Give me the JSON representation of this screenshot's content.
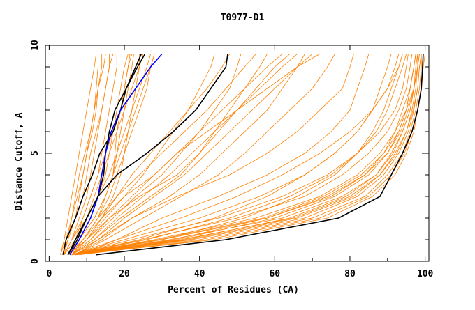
{
  "chart_data": {
    "type": "line",
    "title": "T0977-D1",
    "xlabel": "Percent of Residues (CA)",
    "ylabel": "Distance Cutoff, A",
    "xlim": [
      -1,
      101
    ],
    "ylim": [
      0,
      10
    ],
    "x_ticks": [
      0,
      20,
      40,
      60,
      80,
      100
    ],
    "y_ticks": [
      0,
      5,
      10
    ],
    "grid": false,
    "colors": {
      "models": "#ff8000",
      "highlight": "#000000",
      "blue": "#0000ff"
    },
    "y_levels": [
      0.3,
      1,
      2,
      3,
      4,
      5,
      6,
      7,
      8,
      9,
      9.6
    ],
    "series_note": "each series lists x (percent of residues) at each y_levels cutoff",
    "orange_series": [
      [
        3,
        4,
        5,
        6,
        7,
        8,
        9,
        10,
        11,
        12,
        12.5
      ],
      [
        3.5,
        5,
        7,
        8,
        9,
        10,
        11,
        12,
        12.5,
        13,
        13
      ],
      [
        4,
        6,
        8,
        10,
        11,
        12,
        13,
        14,
        15,
        16,
        16
      ],
      [
        3,
        4.5,
        6,
        7.5,
        9,
        10,
        11.5,
        12.5,
        13,
        14,
        14
      ],
      [
        4,
        5,
        6,
        7,
        8,
        9.5,
        11,
        12,
        13,
        14.5,
        15
      ],
      [
        5,
        7,
        9,
        11,
        13,
        14,
        15,
        16,
        17,
        18,
        18
      ],
      [
        4,
        6,
        9,
        11,
        13,
        15,
        17,
        18,
        19,
        20,
        21
      ],
      [
        5,
        8,
        11,
        13,
        15,
        16,
        17,
        19,
        20,
        21,
        22
      ],
      [
        4,
        7,
        10,
        12,
        14,
        16,
        18,
        20,
        22,
        24,
        25
      ],
      [
        5,
        8,
        12,
        15,
        17,
        19,
        21,
        23,
        25,
        27,
        28
      ],
      [
        6,
        9,
        13,
        15,
        17,
        18,
        19,
        20,
        21,
        22,
        22.5
      ],
      [
        4,
        6,
        10,
        13,
        16,
        18,
        20,
        22,
        24,
        26,
        27
      ],
      [
        3.5,
        5,
        7,
        9,
        10,
        11,
        12.5,
        14,
        15,
        16,
        17
      ],
      [
        5,
        9,
        13,
        16,
        18,
        20,
        22,
        24,
        26,
        27,
        28
      ],
      [
        6,
        10,
        14,
        17,
        19,
        20,
        21,
        22,
        23,
        24,
        24
      ],
      [
        5,
        8,
        12,
        15,
        17,
        17.5,
        18,
        19,
        20,
        21,
        21.5
      ],
      [
        5,
        10,
        14,
        18,
        22,
        27,
        32,
        37,
        42,
        46,
        48
      ],
      [
        6,
        11,
        16,
        22,
        28,
        34,
        40,
        46,
        52,
        58,
        62
      ],
      [
        5,
        9,
        13,
        18,
        24,
        30,
        36,
        42,
        47,
        52,
        55
      ],
      [
        6,
        12,
        18,
        25,
        32,
        38,
        44,
        50,
        56,
        62,
        66
      ],
      [
        7,
        13,
        20,
        28,
        36,
        42,
        48,
        54,
        60,
        66,
        70
      ],
      [
        6,
        11,
        17,
        23,
        30,
        35,
        40,
        44,
        48,
        50,
        51
      ],
      [
        5,
        10,
        15,
        20,
        25,
        29,
        33,
        37,
        40,
        43,
        44
      ],
      [
        7,
        14,
        22,
        32,
        40,
        46,
        52,
        58,
        62,
        66,
        68
      ],
      [
        6,
        10,
        16,
        24,
        34,
        40,
        45,
        50,
        55,
        60,
        64
      ],
      [
        5,
        9,
        14,
        20,
        28,
        34,
        42,
        50,
        58,
        66,
        72
      ],
      [
        6,
        12,
        19,
        27,
        35,
        40,
        44,
        48,
        52,
        56,
        58
      ],
      [
        7,
        15,
        25,
        35,
        45,
        52,
        58,
        64,
        70,
        74,
        76
      ],
      [
        6,
        13,
        22,
        34,
        48,
        58,
        66,
        72,
        78,
        80,
        81
      ],
      [
        8,
        18,
        30,
        45,
        58,
        68,
        75,
        80,
        82,
        84,
        85
      ],
      [
        6,
        30,
        58,
        75,
        84,
        90,
        93,
        95,
        96,
        97,
        97.5
      ],
      [
        6,
        32,
        62,
        78,
        87,
        91,
        94,
        96,
        97,
        98,
        98
      ],
      [
        7,
        35,
        65,
        80,
        88,
        92,
        95,
        96.5,
        97.5,
        98,
        98.5
      ],
      [
        6,
        28,
        55,
        72,
        82,
        88,
        92,
        95,
        96,
        97,
        97.5
      ],
      [
        7,
        38,
        68,
        82,
        89,
        93,
        95.5,
        97,
        98,
        98.5,
        99
      ],
      [
        6,
        25,
        50,
        68,
        78,
        85,
        90,
        93,
        95,
        96,
        96.5
      ],
      [
        7,
        40,
        70,
        84,
        90,
        94,
        96,
        97.5,
        98.5,
        99,
        99
      ],
      [
        6,
        22,
        45,
        62,
        74,
        82,
        88,
        92,
        94,
        95,
        95.5
      ],
      [
        8,
        42,
        72,
        85,
        91,
        94.5,
        96.5,
        98,
        99,
        99.5,
        99.5
      ],
      [
        6,
        34,
        60,
        76,
        85,
        90,
        93.5,
        95.5,
        97,
        98,
        98
      ],
      [
        7,
        30,
        52,
        66,
        76,
        82,
        86,
        89,
        91,
        93,
        94
      ],
      [
        6,
        20,
        40,
        56,
        68,
        76,
        82,
        86,
        90,
        92,
        93
      ],
      [
        7,
        36,
        64,
        79,
        87,
        91.5,
        94,
        96,
        97,
        97.5,
        98
      ],
      [
        6,
        26,
        48,
        64,
        75,
        82,
        87,
        90,
        92,
        94,
        95
      ],
      [
        7,
        44,
        74,
        86,
        92,
        95,
        97,
        98,
        99,
        99.5,
        100
      ],
      [
        6,
        18,
        35,
        50,
        62,
        72,
        80,
        86,
        90,
        93,
        94
      ],
      [
        6,
        24,
        44,
        58,
        68,
        76,
        82,
        86,
        88,
        90,
        91
      ],
      [
        7,
        33,
        58,
        74,
        84,
        89,
        92,
        94,
        96,
        97,
        97
      ],
      [
        6,
        29,
        57,
        73,
        83,
        89,
        93,
        95,
        97,
        98,
        98.5
      ],
      [
        7,
        37,
        66,
        81,
        88,
        92.5,
        95,
        96.8,
        98,
        98.5,
        99
      ]
    ],
    "highlight_series": [
      {
        "name": "black-1",
        "color": "#000000",
        "x": [
          3.7,
          4.5,
          7,
          9,
          11.5,
          13.5,
          17,
          19,
          20.5,
          23,
          24.5
        ]
      },
      {
        "name": "black-2",
        "color": "#000000",
        "x": [
          5,
          7,
          10,
          13,
          14.5,
          15,
          16,
          17.5,
          20.5,
          23.5,
          25.5
        ]
      },
      {
        "name": "blue",
        "color": "#0000ff",
        "x": [
          5.5,
          8,
          11,
          13,
          14,
          15,
          16.5,
          19,
          23,
          27,
          30
        ]
      },
      {
        "name": "black-3",
        "color": "#000000",
        "x": [
          5,
          7.5,
          10,
          13,
          18,
          26,
          33,
          39,
          43,
          47,
          47.5
        ]
      },
      {
        "name": "black-4",
        "color": "#000000",
        "x": [
          12.5,
          47,
          77,
          88,
          91,
          94,
          96.5,
          98,
          99,
          99.3,
          99.5
        ]
      }
    ]
  }
}
